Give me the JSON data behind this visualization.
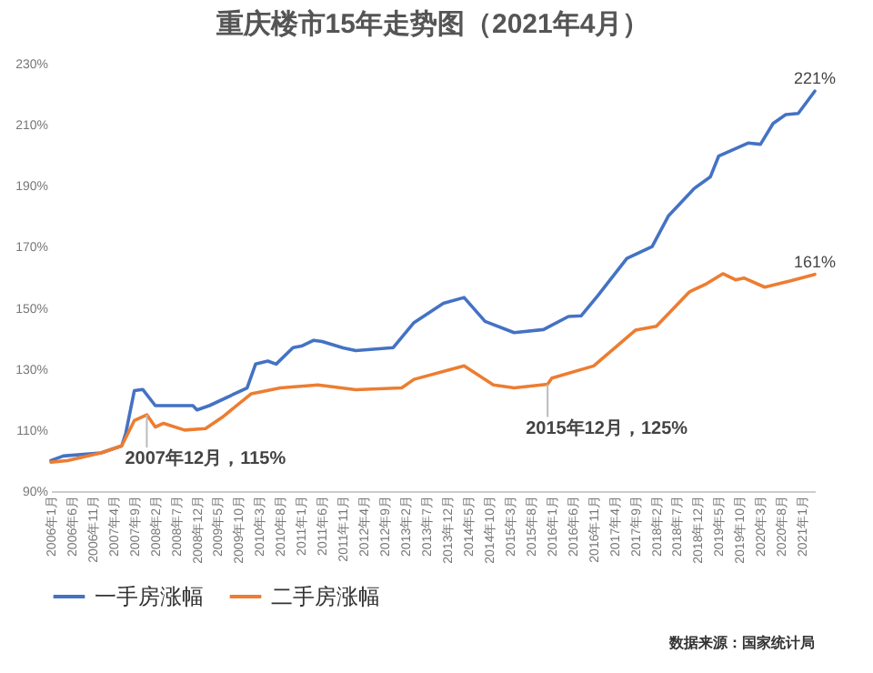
{
  "chart_data": {
    "type": "line",
    "title": "重庆楼市15年走势图（2021年4月）",
    "xlim": [
      "2006-01",
      "2021-04"
    ],
    "xticks": [
      {
        "value": "2006-01",
        "label": "2006年1月"
      },
      {
        "value": "2006-06",
        "label": "2006年6月"
      },
      {
        "value": "2006-11",
        "label": "2006年11月"
      },
      {
        "value": "2007-04",
        "label": "2007年4月"
      },
      {
        "value": "2007-09",
        "label": "2007年9月"
      },
      {
        "value": "2008-02",
        "label": "2008年2月"
      },
      {
        "value": "2008-07",
        "label": "2008年7月"
      },
      {
        "value": "2008-12",
        "label": "2008年12月"
      },
      {
        "value": "2009-05",
        "label": "2009年5月"
      },
      {
        "value": "2009-10",
        "label": "2009年10月"
      },
      {
        "value": "2010-03",
        "label": "2010年3月"
      },
      {
        "value": "2010-08",
        "label": "2010年8月"
      },
      {
        "value": "2011-01",
        "label": "2011年1月"
      },
      {
        "value": "2011-06",
        "label": "2011年6月"
      },
      {
        "value": "2011-11",
        "label": "2011年11月"
      },
      {
        "value": "2012-04",
        "label": "2012年4月"
      },
      {
        "value": "2012-09",
        "label": "2012年9月"
      },
      {
        "value": "2013-02",
        "label": "2013年2月"
      },
      {
        "value": "2013-07",
        "label": "2013年7月"
      },
      {
        "value": "2013-12",
        "label": "2013年12月"
      },
      {
        "value": "2014-05",
        "label": "2014年5月"
      },
      {
        "value": "2014-10",
        "label": "2014年10月"
      },
      {
        "value": "2015-03",
        "label": "2015年3月"
      },
      {
        "value": "2015-08",
        "label": "2015年8月"
      },
      {
        "value": "2016-01",
        "label": "2016年1月"
      },
      {
        "value": "2016-06",
        "label": "2016年6月"
      },
      {
        "value": "2016-11",
        "label": "2016年11月"
      },
      {
        "value": "2017-04",
        "label": "2017年4月"
      },
      {
        "value": "2017-09",
        "label": "2017年9月"
      },
      {
        "value": "2018-02",
        "label": "2018年2月"
      },
      {
        "value": "2018-07",
        "label": "2018年7月"
      },
      {
        "value": "2018-12",
        "label": "2018年12月"
      },
      {
        "value": "2019-05",
        "label": "2019年5月"
      },
      {
        "value": "2019-10",
        "label": "2019年10月"
      },
      {
        "value": "2020-03",
        "label": "2020年3月"
      },
      {
        "value": "2020-08",
        "label": "2020年8月"
      },
      {
        "value": "2021-01",
        "label": "2021年1月"
      }
    ],
    "ylim": [
      90,
      230
    ],
    "yticks": [
      {
        "value": 90,
        "label": "90%"
      },
      {
        "value": 110,
        "label": "110%"
      },
      {
        "value": 130,
        "label": "130%"
      },
      {
        "value": 150,
        "label": "150%"
      },
      {
        "value": 170,
        "label": "170%"
      },
      {
        "value": 190,
        "label": "190%"
      },
      {
        "value": 210,
        "label": "210%"
      },
      {
        "value": 230,
        "label": "230%"
      }
    ],
    "grid": false,
    "legend": "bottom",
    "marker": "none",
    "line_style": "solid",
    "series": [
      {
        "name": "一手房涨幅",
        "color": "#4472c4",
        "x": [
          "2006-01",
          "2006-04",
          "2007-01",
          "2007-06",
          "2007-07",
          "2007-09",
          "2007-11",
          "2008-02",
          "2008-11",
          "2008-12",
          "2009-03",
          "2009-12",
          "2010-02",
          "2010-05",
          "2010-07",
          "2010-11",
          "2011-01",
          "2011-04",
          "2011-06",
          "2011-11",
          "2012-02",
          "2012-11",
          "2013-04",
          "2013-11",
          "2014-04",
          "2014-09",
          "2015-04",
          "2015-11",
          "2016-05",
          "2016-08",
          "2016-12",
          "2017-07",
          "2018-01",
          "2018-05",
          "2018-11",
          "2019-03",
          "2019-05",
          "2019-12",
          "2020-03",
          "2020-06",
          "2020-09",
          "2020-12",
          "2021-04"
        ],
        "values": [
          100,
          101.5,
          102.5,
          104.8,
          109,
          122.9,
          123.3,
          118,
          118,
          116.6,
          118,
          123.8,
          131.6,
          132.6,
          131.6,
          137,
          137.5,
          139.4,
          139,
          136.9,
          136,
          137,
          145.2,
          151.5,
          153.4,
          145.6,
          141.9,
          142.9,
          147.2,
          147.4,
          154,
          166.2,
          170.1,
          180.2,
          189,
          192.9,
          199.7,
          204,
          203.6,
          210.4,
          213.3,
          213.7,
          221
        ]
      },
      {
        "name": "二手房涨幅",
        "color": "#ed7d31",
        "x": [
          "2006-01",
          "2006-05",
          "2007-01",
          "2007-06",
          "2007-09",
          "2007-12",
          "2008-02",
          "2008-04",
          "2008-09",
          "2009-02",
          "2009-06",
          "2010-01",
          "2010-08",
          "2011-05",
          "2012-02",
          "2013-01",
          "2013-04",
          "2014-04",
          "2014-11",
          "2015-04",
          "2015-12",
          "2016-01",
          "2016-11",
          "2017-09",
          "2018-02",
          "2018-10",
          "2019-02",
          "2019-06",
          "2019-09",
          "2019-11",
          "2020-04",
          "2020-10",
          "2021-04"
        ],
        "values": [
          99.5,
          100,
          102.5,
          104.8,
          113.1,
          115,
          111,
          112.2,
          110,
          110.5,
          114.1,
          121.9,
          123.8,
          124.8,
          123.2,
          123.8,
          126.6,
          131,
          124.8,
          123.8,
          125,
          127,
          131,
          142.7,
          144,
          155.3,
          157.9,
          161.2,
          159.2,
          159.8,
          156.8,
          158.8,
          161
        ]
      }
    ],
    "annotations": [
      {
        "text": "2007年12月，115%",
        "x": "2007-12",
        "y": 115
      },
      {
        "text": "2015年12月，125%",
        "x": "2015-12",
        "y": 125
      },
      {
        "text": "221%",
        "x": "2021-04",
        "y": 221
      },
      {
        "text": "161%",
        "x": "2021-04",
        "y": 161
      },
      "数据来源：国家统计局"
    ]
  }
}
